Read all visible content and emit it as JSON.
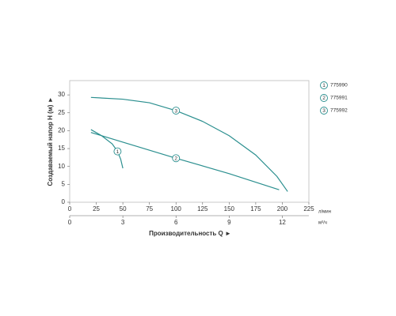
{
  "chart_data": {
    "type": "line",
    "x_label": "Производительность Q ►",
    "y_label": "Создаваемый напор Н (м) ►",
    "x_unit": "л/мин",
    "x2_unit": "м³/ч",
    "xlim": [
      0,
      225
    ],
    "xticks": [
      0,
      25,
      50,
      75,
      100,
      125,
      150,
      175,
      200,
      225
    ],
    "x2lim": [
      0,
      13.5
    ],
    "x2ticks": [
      0,
      3,
      6,
      9,
      12
    ],
    "ylim": [
      0,
      34
    ],
    "yticks": [
      0,
      5,
      10,
      15,
      20,
      25,
      30
    ],
    "series": [
      {
        "name": "775990",
        "label": "1",
        "color": "#2b8f8f",
        "x": [
          20,
          30,
          40,
          45,
          48,
          50
        ],
        "values": [
          20.3,
          18.6,
          16.3,
          14.2,
          12,
          9.5
        ]
      },
      {
        "name": "775991",
        "label": "2",
        "color": "#2b8f8f",
        "x": [
          20,
          50,
          100,
          150,
          197
        ],
        "values": [
          19.5,
          16.8,
          12.3,
          8,
          3.5
        ]
      },
      {
        "name": "775992",
        "label": "3",
        "color": "#2b8f8f",
        "x": [
          20,
          50,
          75,
          100,
          125,
          150,
          175,
          195,
          205
        ],
        "values": [
          29.3,
          28.8,
          27.8,
          25.6,
          22.6,
          18.6,
          13.2,
          7.2,
          3
        ]
      }
    ]
  }
}
